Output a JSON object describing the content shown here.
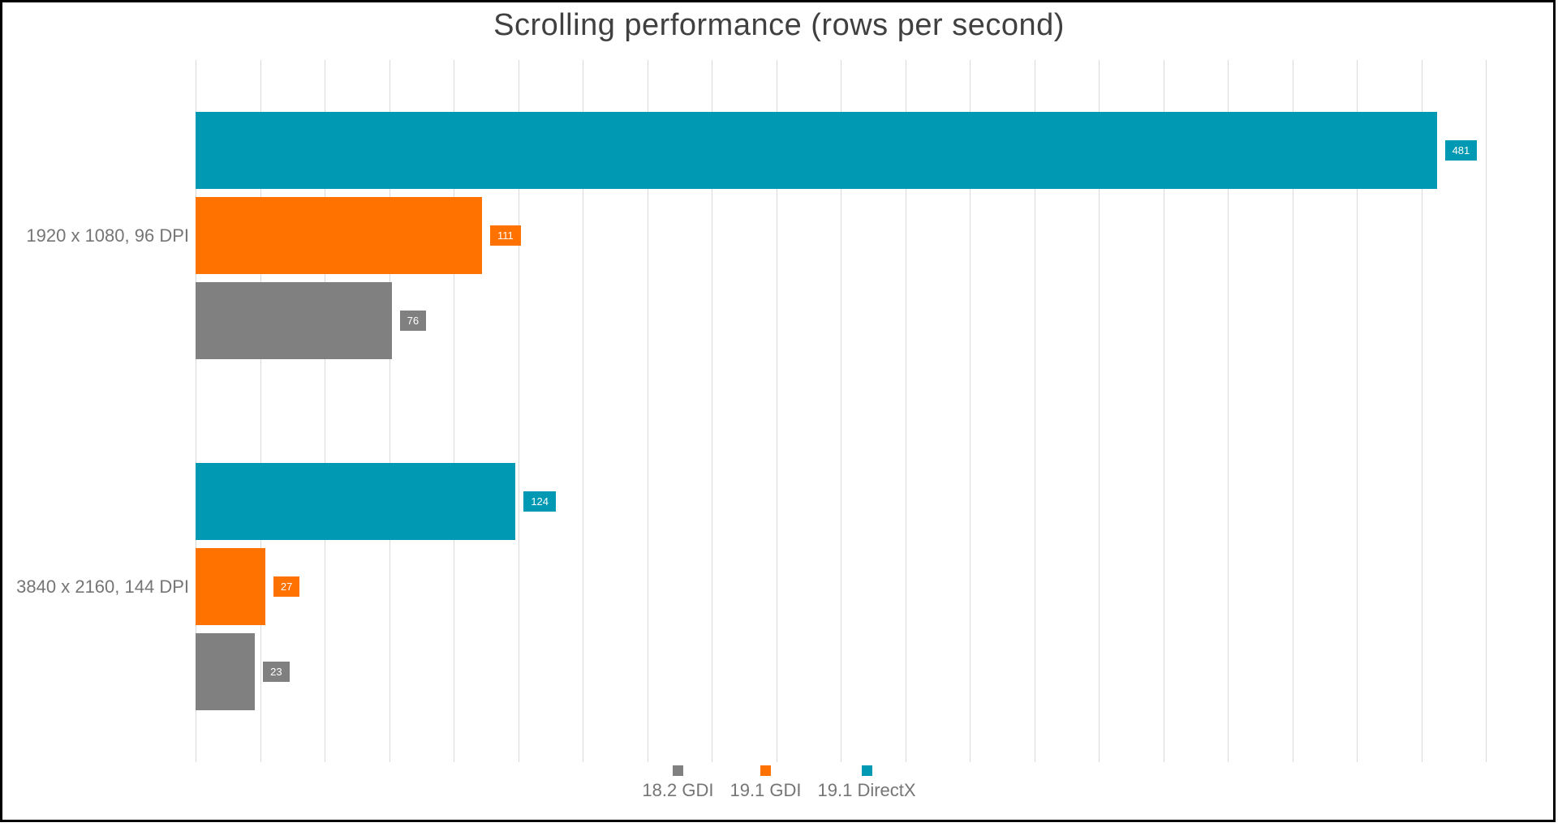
{
  "frame": {
    "border_color": "#000000",
    "background_color": "#FFFFFF"
  },
  "chart_data": {
    "type": "bar",
    "orientation": "horizontal",
    "title": "Scrolling performance (rows per second)",
    "title_color": "#404040",
    "categories": [
      "1920 x 1080, 96 DPI",
      "3840 x 2160, 144 DPI"
    ],
    "series": [
      {
        "name": "18.2 GDI",
        "color": "#808080",
        "values": [
          76,
          23
        ]
      },
      {
        "name": "19.1 GDI",
        "color": "#FF7200",
        "values": [
          111,
          27
        ]
      },
      {
        "name": "19.1 DirectX",
        "color": "#0099B4",
        "values": [
          481,
          124
        ]
      }
    ],
    "bar_order_top_to_bottom": [
      "19.1 DirectX",
      "19.1 GDI",
      "18.2 GDI"
    ],
    "xlim": [
      0,
      500
    ],
    "grid": true,
    "grid_interval": 25,
    "gridline_color": "#D9D9D9",
    "axis_tick_labels_shown": false,
    "value_labels": true,
    "value_label_text_color": "#FFFFFF",
    "category_label_color": "#757575",
    "legend_position": "bottom-center",
    "legend_text_color": "#757575"
  }
}
